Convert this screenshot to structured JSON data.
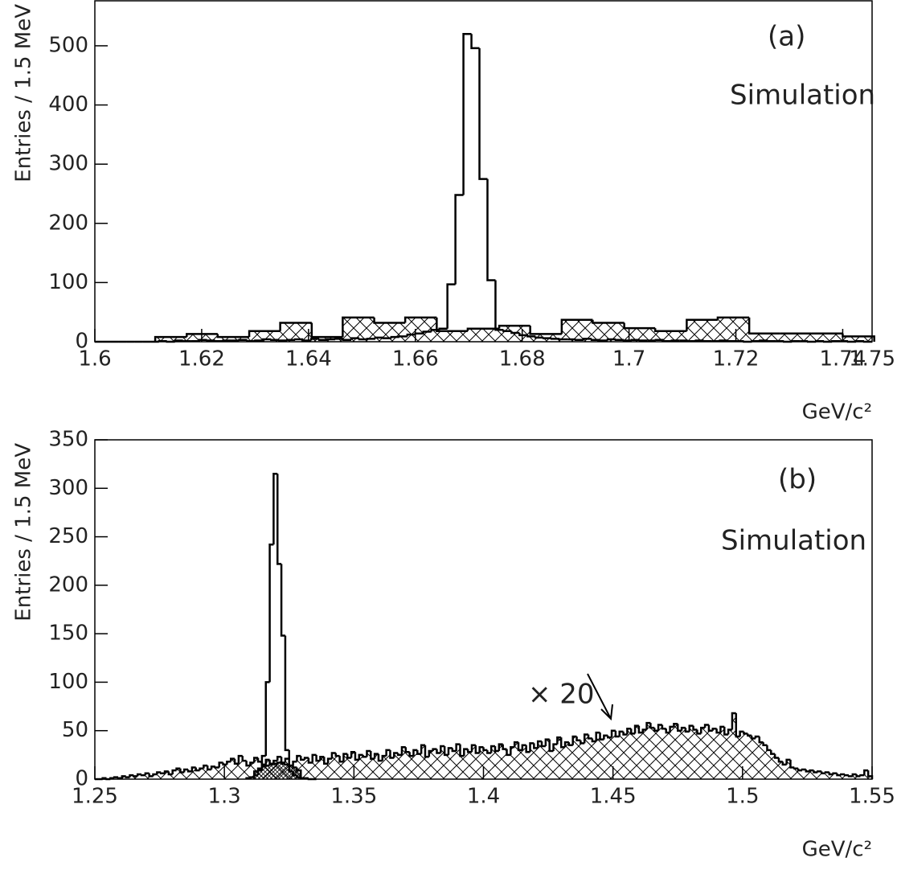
{
  "chart_data": [
    {
      "type": "histogram",
      "label": "(a)",
      "annotations": [
        "Simulation"
      ],
      "xlabel": "GeV/c²",
      "ylabel": "Entries / 1.5 MeV",
      "xlim": [
        1.6,
        1.7455
      ],
      "ylim": [
        0,
        576
      ],
      "xticks": [
        1.6,
        1.62,
        1.64,
        1.66,
        1.68,
        1.7,
        1.72,
        1.74,
        1.75
      ],
      "yticks": [
        0,
        100,
        200,
        300,
        400,
        500
      ],
      "series": [
        {
          "color": "#000000",
          "hatch": "cross",
          "bins": [
            1.6113,
            1.6172,
            1.623,
            1.6289,
            1.6347,
            1.6406,
            1.6464,
            1.6523,
            1.6581,
            1.664,
            1.6698,
            1.6757,
            1.6815,
            1.6874,
            1.6932,
            1.6991,
            1.7049,
            1.7108,
            1.7166,
            1.7225,
            1.7283,
            1.7342,
            1.74,
            1.7459
          ],
          "values": [
            8,
            13,
            8,
            18,
            32,
            8,
            41,
            32,
            41,
            18,
            22,
            27,
            13,
            37,
            32,
            23,
            18,
            37,
            41,
            14,
            14,
            14,
            9
          ]
        },
        {
          "color": "#000000",
          "hatch": null,
          "bins": [
            1.6,
            1.6015,
            1.603,
            1.6045,
            1.606,
            1.6075,
            1.609,
            1.6105,
            1.612,
            1.6135,
            1.615,
            1.6165,
            1.618,
            1.6195,
            1.621,
            1.6225,
            1.624,
            1.6255,
            1.627,
            1.6285,
            1.63,
            1.6315,
            1.633,
            1.6345,
            1.636,
            1.6375,
            1.639,
            1.6405,
            1.642,
            1.6435,
            1.645,
            1.6465,
            1.648,
            1.6495,
            1.651,
            1.6525,
            1.654,
            1.6555,
            1.657,
            1.6585,
            1.66,
            1.6615,
            1.663,
            1.6645,
            1.666,
            1.6675,
            1.669,
            1.6705,
            1.672,
            1.6735,
            1.675,
            1.6765,
            1.678,
            1.6795,
            1.681,
            1.6825,
            1.684,
            1.6855,
            1.687,
            1.6885,
            1.69,
            1.6915,
            1.693,
            1.6945,
            1.696,
            1.6975,
            1.699,
            1.7005,
            1.702,
            1.7035,
            1.705,
            1.7065,
            1.708,
            1.7095,
            1.711,
            1.7125,
            1.714,
            1.7155,
            1.717,
            1.7185,
            1.72,
            1.7215,
            1.723,
            1.7245,
            1.726,
            1.7275,
            1.729,
            1.7305,
            1.732,
            1.7335,
            1.735,
            1.7365,
            1.738,
            1.7395,
            1.741,
            1.7425,
            1.744,
            1.7455
          ],
          "values": [
            0,
            0,
            0,
            0,
            0,
            0,
            0,
            0,
            1,
            0,
            2,
            1,
            1,
            3,
            2,
            1,
            2,
            2,
            3,
            1,
            2,
            4,
            3,
            2,
            3,
            4,
            2,
            5,
            3,
            4,
            5,
            3,
            6,
            4,
            5,
            7,
            6,
            8,
            9,
            12,
            14,
            17,
            20,
            22,
            97,
            248,
            520,
            496,
            275,
            104,
            20,
            18,
            15,
            11,
            9,
            7,
            6,
            5,
            4,
            4,
            3,
            5,
            3,
            2,
            4,
            3,
            2,
            3,
            2,
            2,
            3,
            1,
            2,
            2,
            1,
            2,
            1,
            1,
            2,
            1,
            1,
            0,
            1,
            2,
            1,
            1,
            0,
            1,
            1,
            0,
            1,
            0,
            1,
            1,
            0,
            1,
            0
          ]
        }
      ]
    },
    {
      "type": "histogram",
      "label": "(b)",
      "annotations": [
        "Simulation",
        "× 20"
      ],
      "xlabel": "GeV/c²",
      "ylabel": "Entries / 1.5 MeV",
      "xlim": [
        1.25,
        1.55
      ],
      "ylim": [
        0,
        350
      ],
      "xticks": [
        1.25,
        1.3,
        1.35,
        1.4,
        1.45,
        1.5,
        1.55
      ],
      "yticks": [
        0,
        50,
        100,
        150,
        200,
        250,
        300,
        350
      ],
      "series": [
        {
          "color": "#000000",
          "hatch": "cross",
          "bins": [
            1.25,
            1.2515,
            1.253,
            1.2545,
            1.256,
            1.2575,
            1.259,
            1.2605,
            1.262,
            1.2635,
            1.265,
            1.2665,
            1.268,
            1.2695,
            1.271,
            1.2725,
            1.274,
            1.2755,
            1.277,
            1.2785,
            1.28,
            1.2815,
            1.283,
            1.2845,
            1.286,
            1.2875,
            1.289,
            1.2905,
            1.292,
            1.2935,
            1.295,
            1.2965,
            1.298,
            1.2995,
            1.301,
            1.3025,
            1.304,
            1.3055,
            1.307,
            1.3085,
            1.31,
            1.3115,
            1.313,
            1.3145,
            1.316,
            1.3175,
            1.319,
            1.3205,
            1.322,
            1.3235,
            1.325,
            1.3265,
            1.328,
            1.3295,
            1.331,
            1.3325,
            1.334,
            1.3355,
            1.337,
            1.3385,
            1.34,
            1.3415,
            1.343,
            1.3445,
            1.346,
            1.3475,
            1.349,
            1.3505,
            1.352,
            1.3535,
            1.355,
            1.3565,
            1.358,
            1.3595,
            1.361,
            1.3625,
            1.364,
            1.3655,
            1.367,
            1.3685,
            1.37,
            1.3715,
            1.373,
            1.3745,
            1.376,
            1.3775,
            1.379,
            1.3805,
            1.382,
            1.3835,
            1.385,
            1.3865,
            1.388,
            1.3895,
            1.391,
            1.3925,
            1.394,
            1.3955,
            1.397,
            1.3985,
            1.4,
            1.4015,
            1.403,
            1.4045,
            1.406,
            1.4075,
            1.409,
            1.4105,
            1.412,
            1.4135,
            1.415,
            1.4165,
            1.418,
            1.4195,
            1.421,
            1.4225,
            1.424,
            1.4255,
            1.427,
            1.4285,
            1.43,
            1.4315,
            1.433,
            1.4345,
            1.436,
            1.4375,
            1.439,
            1.4405,
            1.442,
            1.4435,
            1.445,
            1.4465,
            1.448,
            1.4495,
            1.451,
            1.4525,
            1.454,
            1.4555,
            1.457,
            1.4585,
            1.46,
            1.4615,
            1.463,
            1.4645,
            1.466,
            1.4675,
            1.469,
            1.4705,
            1.472,
            1.4735,
            1.475,
            1.4765,
            1.478,
            1.4795,
            1.481,
            1.4825,
            1.484,
            1.4855,
            1.487,
            1.4885,
            1.49,
            1.4915,
            1.493,
            1.4945,
            1.496,
            1.4975,
            1.499,
            1.5005,
            1.502,
            1.5035,
            1.505,
            1.5065,
            1.508,
            1.5095,
            1.511,
            1.5125,
            1.514,
            1.5155,
            1.517,
            1.5185,
            1.52,
            1.5215,
            1.523,
            1.5245,
            1.526,
            1.5275,
            1.529,
            1.5305,
            1.532,
            1.5335,
            1.535,
            1.5365,
            1.538,
            1.5395,
            1.541,
            1.5425,
            1.544,
            1.5455,
            1.547,
            1.5485,
            1.55
          ],
          "values": [
            0,
            0,
            1,
            0,
            1,
            2,
            1,
            3,
            2,
            4,
            3,
            5,
            4,
            6,
            3,
            5,
            7,
            6,
            8,
            5,
            9,
            11,
            7,
            10,
            8,
            12,
            9,
            11,
            14,
            10,
            13,
            12,
            17,
            15,
            18,
            21,
            16,
            24,
            19,
            14,
            17,
            22,
            18,
            15,
            20,
            16,
            19,
            23,
            17,
            21,
            14,
            18,
            24,
            20,
            22,
            17,
            25,
            19,
            23,
            16,
            21,
            27,
            24,
            18,
            26,
            22,
            28,
            20,
            25,
            23,
            29,
            21,
            26,
            19,
            24,
            30,
            22,
            27,
            25,
            33,
            28,
            24,
            30,
            26,
            35,
            23,
            29,
            31,
            27,
            34,
            25,
            32,
            29,
            36,
            24,
            31,
            28,
            35,
            27,
            33,
            30,
            27,
            34,
            29,
            36,
            31,
            25,
            33,
            38,
            30,
            35,
            28,
            37,
            32,
            39,
            34,
            41,
            29,
            36,
            43,
            33,
            38,
            35,
            44,
            40,
            37,
            46,
            42,
            39,
            48,
            41,
            45,
            43,
            50,
            44,
            49,
            46,
            52,
            47,
            55,
            48,
            51,
            58,
            53,
            50,
            56,
            52,
            48,
            54,
            57,
            50,
            53,
            49,
            55,
            51,
            47,
            53,
            56,
            50,
            52,
            48,
            54,
            46,
            51,
            68,
            44,
            49,
            47,
            45,
            42,
            44,
            38,
            35,
            30,
            26,
            22,
            18,
            15,
            20,
            12,
            11,
            9,
            10,
            8,
            9,
            7,
            8,
            6,
            7,
            5,
            6,
            4,
            5,
            4,
            3,
            5,
            3,
            4,
            9,
            3
          ]
        },
        {
          "color": "#000000",
          "hatch": "dense",
          "bins": [
            1.3115,
            1.313,
            1.3145,
            1.316,
            1.3175,
            1.319,
            1.3205,
            1.322,
            1.3235,
            1.325,
            1.3265,
            1.328,
            1.3295
          ],
          "values": [
            8,
            11,
            13,
            14,
            15,
            16,
            17,
            16,
            15,
            14,
            12,
            9
          ]
        },
        {
          "color": "#000000",
          "hatch": null,
          "bins": [
            1.3085,
            1.31,
            1.3115,
            1.313,
            1.3145,
            1.316,
            1.3175,
            1.319,
            1.3205,
            1.322,
            1.3235,
            1.325,
            1.3265,
            1.328,
            1.3295,
            1.331,
            1.3325,
            1.334,
            1.3355
          ],
          "values": [
            1,
            2,
            4,
            9,
            24,
            100,
            242,
            315,
            222,
            148,
            30,
            8,
            4,
            2,
            1,
            1,
            0,
            0
          ]
        }
      ]
    }
  ]
}
